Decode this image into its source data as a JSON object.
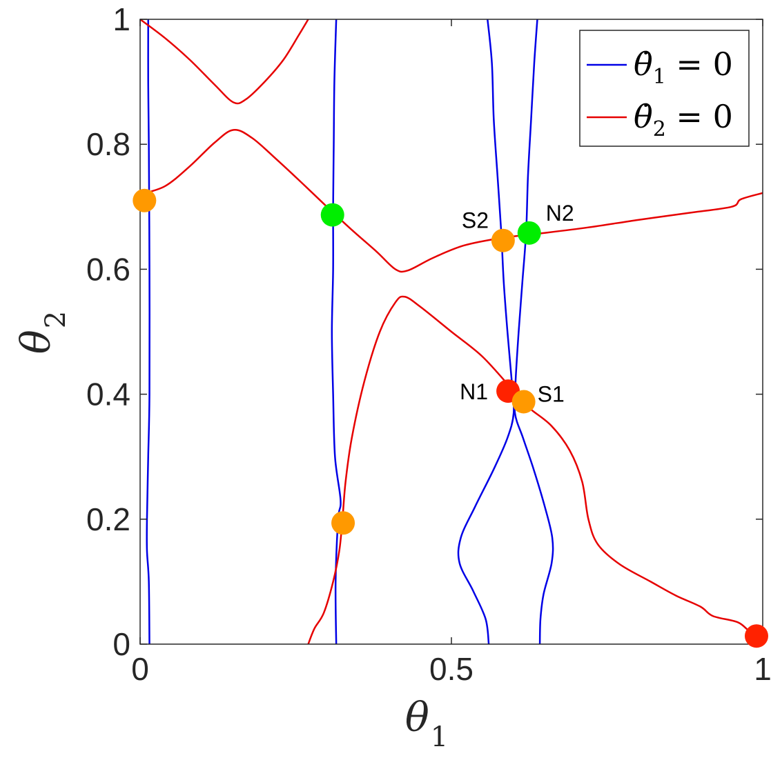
{
  "chart_data": {
    "type": "line",
    "xlabel": "θ",
    "xlabel_sub": "1",
    "ylabel": "θ",
    "ylabel_sub": "2",
    "xlim": [
      0,
      1
    ],
    "ylim": [
      0,
      1
    ],
    "xticks": [
      0,
      0.5,
      1
    ],
    "xtick_labels": [
      "0",
      "0.5",
      "1"
    ],
    "yticks": [
      0,
      0.2,
      0.4,
      0.6,
      0.8,
      1
    ],
    "ytick_labels": [
      "0",
      "0.2",
      "0.4",
      "0.6",
      "0.8",
      "1"
    ],
    "grid": false,
    "legend_position": "top-right",
    "series": [
      {
        "name": "θ̇1 = 0",
        "legend_var": "θ̇",
        "legend_sub": "1",
        "legend_rest": " = 0",
        "color": "#0000e6",
        "curves": [
          [
            [
              0.015,
              0
            ],
            [
              0.014,
              0.1
            ],
            [
              0.011,
              0.15
            ],
            [
              0.011,
              0.2
            ],
            [
              0.013,
              0.3
            ],
            [
              0.015,
              0.4
            ],
            [
              0.015,
              0.6
            ],
            [
              0.014,
              0.8
            ],
            [
              0.013,
              0.9
            ],
            [
              0.013,
              1.0
            ]
          ],
          [
            [
              0.315,
              0
            ],
            [
              0.314,
              0.1
            ],
            [
              0.318,
              0.2
            ],
            [
              0.322,
              0.23
            ],
            [
              0.313,
              0.3
            ],
            [
              0.31,
              0.4
            ],
            [
              0.308,
              0.5
            ],
            [
              0.31,
              0.6
            ],
            [
              0.31,
              0.7
            ],
            [
              0.311,
              0.8
            ],
            [
              0.312,
              0.9
            ],
            [
              0.315,
              1.0
            ]
          ],
          [
            [
              0.56,
              0
            ],
            [
              0.555,
              0.04
            ],
            [
              0.535,
              0.085
            ],
            [
              0.513,
              0.13
            ],
            [
              0.515,
              0.17
            ],
            [
              0.538,
              0.22
            ],
            [
              0.568,
              0.28
            ],
            [
              0.59,
              0.33
            ],
            [
              0.6,
              0.37
            ],
            [
              0.597,
              0.42
            ],
            [
              0.59,
              0.5
            ],
            [
              0.584,
              0.58
            ],
            [
              0.58,
              0.66
            ],
            [
              0.574,
              0.75
            ],
            [
              0.568,
              0.84
            ],
            [
              0.565,
              0.93
            ],
            [
              0.558,
              1.0
            ]
          ],
          [
            [
              0.642,
              0
            ],
            [
              0.643,
              0.04
            ],
            [
              0.648,
              0.08
            ],
            [
              0.661,
              0.13
            ],
            [
              0.662,
              0.17
            ],
            [
              0.65,
              0.22
            ],
            [
              0.632,
              0.28
            ],
            [
              0.615,
              0.33
            ],
            [
              0.602,
              0.37
            ],
            [
              0.603,
              0.42
            ],
            [
              0.608,
              0.5
            ],
            [
              0.614,
              0.58
            ],
            [
              0.62,
              0.66
            ],
            [
              0.623,
              0.75
            ],
            [
              0.628,
              0.84
            ],
            [
              0.633,
              0.93
            ],
            [
              0.638,
              1.0
            ]
          ]
        ]
      },
      {
        "name": "θ̇2 = 0",
        "legend_var": "θ̇",
        "legend_sub": "2",
        "legend_rest": " = 0",
        "color": "#e60000",
        "curves": [
          [
            [
              0.0,
              1.0
            ],
            [
              0.04,
              0.97
            ],
            [
              0.08,
              0.935
            ],
            [
              0.12,
              0.895
            ],
            [
              0.15,
              0.867
            ],
            [
              0.17,
              0.872
            ],
            [
              0.2,
              0.9
            ],
            [
              0.23,
              0.935
            ],
            [
              0.255,
              0.975
            ],
            [
              0.27,
              1.0
            ]
          ],
          [
            [
              0.0,
              0.72
            ],
            [
              0.04,
              0.733
            ],
            [
              0.08,
              0.765
            ],
            [
              0.12,
              0.803
            ],
            [
              0.15,
              0.823
            ],
            [
              0.18,
              0.81
            ],
            [
              0.22,
              0.775
            ],
            [
              0.26,
              0.738
            ],
            [
              0.3,
              0.7
            ],
            [
              0.34,
              0.663
            ],
            [
              0.38,
              0.628
            ],
            [
              0.41,
              0.6
            ],
            [
              0.43,
              0.598
            ],
            [
              0.47,
              0.618
            ],
            [
              0.52,
              0.638
            ],
            [
              0.58,
              0.65
            ],
            [
              0.64,
              0.657
            ],
            [
              0.72,
              0.667
            ],
            [
              0.8,
              0.679
            ],
            [
              0.88,
              0.69
            ],
            [
              0.95,
              0.7
            ],
            [
              0.965,
              0.712
            ],
            [
              1.0,
              0.722
            ]
          ],
          [
            [
              0.27,
              0.0
            ],
            [
              0.28,
              0.025
            ],
            [
              0.295,
              0.05
            ],
            [
              0.31,
              0.1
            ],
            [
              0.32,
              0.15
            ],
            [
              0.325,
              0.2
            ],
            [
              0.33,
              0.26
            ],
            [
              0.34,
              0.33
            ],
            [
              0.36,
              0.42
            ],
            [
              0.385,
              0.5
            ],
            [
              0.41,
              0.547
            ],
            [
              0.425,
              0.556
            ],
            [
              0.45,
              0.54
            ],
            [
              0.5,
              0.5
            ],
            [
              0.55,
              0.46
            ],
            [
              0.6,
              0.405
            ],
            [
              0.625,
              0.378
            ],
            [
              0.66,
              0.35
            ],
            [
              0.69,
              0.31
            ],
            [
              0.71,
              0.26
            ],
            [
              0.72,
              0.2
            ],
            [
              0.735,
              0.16
            ],
            [
              0.77,
              0.128
            ],
            [
              0.82,
              0.1
            ],
            [
              0.86,
              0.078
            ],
            [
              0.9,
              0.06
            ],
            [
              0.92,
              0.045
            ],
            [
              0.96,
              0.035
            ],
            [
              0.98,
              0.02
            ],
            [
              1.0,
              0.015
            ]
          ]
        ]
      }
    ],
    "points": [
      {
        "label": "",
        "x": 0.007,
        "y": 0.71,
        "color": "#ff9900"
      },
      {
        "label": "",
        "x": 0.309,
        "y": 0.687,
        "color": "#00ee00"
      },
      {
        "label": "",
        "x": 0.326,
        "y": 0.194,
        "color": "#ff9900"
      },
      {
        "label": "S2",
        "x": 0.583,
        "y": 0.646,
        "color": "#ff9900"
      },
      {
        "label": "N2",
        "x": 0.625,
        "y": 0.658,
        "color": "#00ee00"
      },
      {
        "label": "N1",
        "x": 0.591,
        "y": 0.405,
        "color": "#ff2200"
      },
      {
        "label": "S1",
        "x": 0.616,
        "y": 0.388,
        "color": "#ff9900"
      },
      {
        "label": "",
        "x": 0.99,
        "y": 0.013,
        "color": "#ff2200"
      }
    ]
  }
}
